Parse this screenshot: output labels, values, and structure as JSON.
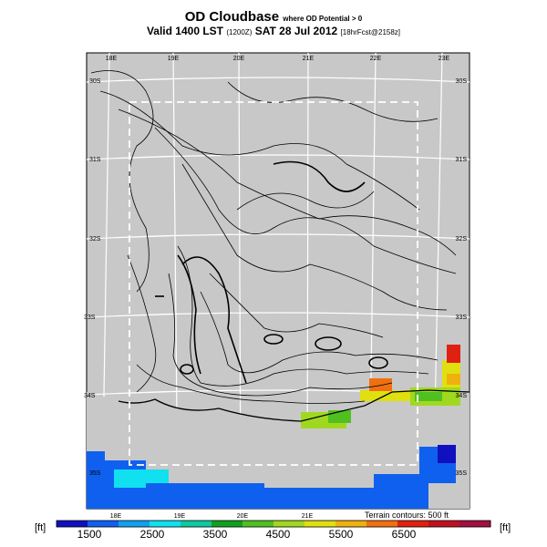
{
  "title": {
    "main": "OD Cloudbase",
    "qualifier": "where OD Potential > 0"
  },
  "subtitle": {
    "valid": "Valid 1400 LST",
    "zulu": "(1200Z)",
    "date": "SAT 28 Jul 2012",
    "forecast": "[18hrFcst@2158z]"
  },
  "terrain_note": "Terrain contours: 500 ft",
  "units": {
    "left": "[ft]",
    "right": "[ft]"
  },
  "map": {
    "background": "#c8c8c8",
    "lon_labels_top": [
      "18E",
      "19E",
      "20E",
      "21E",
      "22E",
      "23E"
    ],
    "lon_labels_bottom": [
      "18E",
      "19E",
      "20E",
      "21E"
    ],
    "lat_labels_left": [
      "30S",
      "31S",
      "32S",
      "33S",
      "34S",
      "35S"
    ],
    "lat_labels_right": [
      "30S",
      "31S",
      "32S",
      "33S",
      "34S",
      "35S"
    ]
  },
  "colorbar": {
    "colors": [
      "#1010c0",
      "#1060f0",
      "#10a0f0",
      "#10e0f0",
      "#10c8a0",
      "#10a020",
      "#50c020",
      "#a0d820",
      "#e0e010",
      "#f0b010",
      "#f07010",
      "#e02010",
      "#c01020",
      "#a01040"
    ],
    "labels": [
      "1500",
      "2500",
      "3500",
      "4500",
      "5500",
      "6500"
    ]
  }
}
